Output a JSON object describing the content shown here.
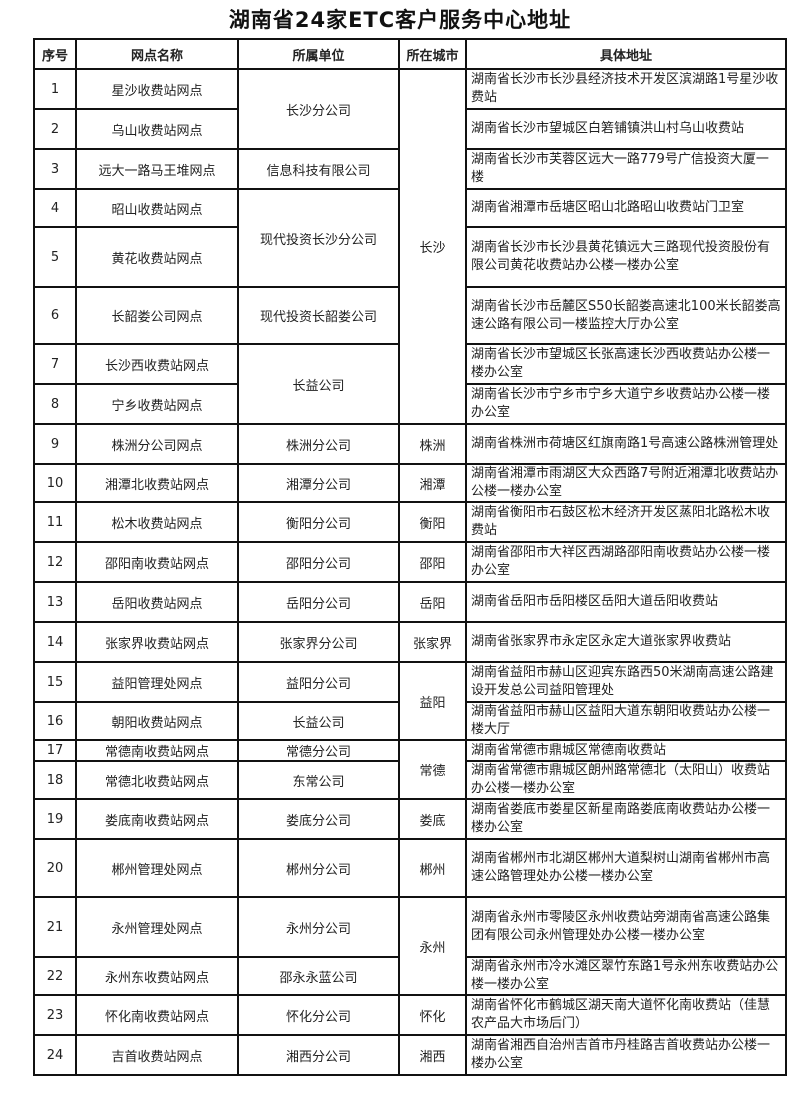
{
  "title": "湖南省24家ETC客户服务中心地址",
  "headers": [
    "序号",
    "网点名称",
    "所属单位",
    "所在城市",
    "具体地址"
  ],
  "rows": [
    {
      "no": "1",
      "name": "星沙收费站网点",
      "unit": "长沙分公司",
      "city": "长沙",
      "address": "湖南省长沙市长沙县经济技术开发区滨湖路1号星沙收费站"
    },
    {
      "no": "2",
      "name": "乌山收费站网点",
      "unit": "长沙分公司",
      "city": "长沙",
      "address": "湖南省长沙市望城区白箬铺镇洪山村乌山收费站"
    },
    {
      "no": "3",
      "name": "远大一路马王堆网点",
      "unit": "信息科技有限公司",
      "city": "长沙",
      "address": "湖南省长沙市芙蓉区远大一路779号广信投资大厦一楼"
    },
    {
      "no": "4",
      "name": "昭山收费站网点",
      "unit": "现代投资长沙分公司",
      "city": "长沙",
      "address": "湖南省湘潭市岳塘区昭山北路昭山收费站门卫室"
    },
    {
      "no": "5",
      "name": "黄花收费站网点",
      "unit": "现代投资长沙分公司",
      "city": "长沙",
      "address": "湖南省长沙市长沙县黄花镇远大三路现代投资股份有限公司黄花收费站办公楼一楼办公室"
    },
    {
      "no": "6",
      "name": "长韶娄公司网点",
      "unit": "现代投资长韶娄公司",
      "city": "长沙",
      "address": "湖南省长沙市岳麓区S50长韶娄高速北100米长韶娄高速公路有限公司一楼监控大厅办公室"
    },
    {
      "no": "7",
      "name": "长沙西收费站网点",
      "unit": "长益公司",
      "city": "长沙",
      "address": "湖南省长沙市望城区长张高速长沙西收费站办公楼一楼办公室"
    },
    {
      "no": "8",
      "name": "宁乡收费站网点",
      "unit": "长益公司",
      "city": "长沙",
      "address": "湖南省长沙市宁乡市宁乡大道宁乡收费站办公楼一楼办公室"
    },
    {
      "no": "9",
      "name": "株洲分公司网点",
      "unit": "株洲分公司",
      "city": "株洲",
      "address": "湖南省株洲市荷塘区红旗南路1号高速公路株洲管理处"
    },
    {
      "no": "10",
      "name": "湘潭北收费站网点",
      "unit": "湘潭分公司",
      "city": "湘潭",
      "address": "湖南省湘潭市雨湖区大众西路7号附近湘潭北收费站办公楼一楼办公室"
    },
    {
      "no": "11",
      "name": "松木收费站网点",
      "unit": "衡阳分公司",
      "city": "衡阳",
      "address": "湖南省衡阳市石鼓区松木经济开发区蒸阳北路松木收费站"
    },
    {
      "no": "12",
      "name": "邵阳南收费站网点",
      "unit": "邵阳分公司",
      "city": "邵阳",
      "address": "湖南省邵阳市大祥区西湖路邵阳南收费站办公楼一楼办公室"
    },
    {
      "no": "13",
      "name": "岳阳收费站网点",
      "unit": "岳阳分公司",
      "city": "岳阳",
      "address": "湖南省岳阳市岳阳楼区岳阳大道岳阳收费站"
    },
    {
      "no": "14",
      "name": "张家界收费站网点",
      "unit": "张家界分公司",
      "city": "张家界",
      "address": "湖南省张家界市永定区永定大道张家界收费站"
    },
    {
      "no": "15",
      "name": "益阳管理处网点",
      "unit": "益阳分公司",
      "city": "益阳",
      "address": "湖南省益阳市赫山区迎宾东路西50米湖南高速公路建设开发总公司益阳管理处"
    },
    {
      "no": "16",
      "name": "朝阳收费站网点",
      "unit": "长益公司",
      "city": "益阳",
      "address": "湖南省益阳市赫山区益阳大道东朝阳收费站办公楼一楼大厅"
    },
    {
      "no": "17",
      "name": "常德南收费站网点",
      "unit": "常德分公司",
      "city": "常德",
      "address": "湖南省常德市鼎城区常德南收费站"
    },
    {
      "no": "18",
      "name": "常德北收费站网点",
      "unit": "东常公司",
      "city": "常德",
      "address": "湖南省常德市鼎城区朗州路常德北（太阳山）收费站办公楼一楼办公室"
    },
    {
      "no": "19",
      "name": "娄底南收费站网点",
      "unit": "娄底分公司",
      "city": "娄底",
      "address": "湖南省娄底市娄星区新星南路娄底南收费站办公楼一楼办公室"
    },
    {
      "no": "20",
      "name": "郴州管理处网点",
      "unit": "郴州分公司",
      "city": "郴州",
      "address": "湖南省郴州市北湖区郴州大道梨树山湖南省郴州市高速公路管理处办公楼一楼办公室"
    },
    {
      "no": "21",
      "name": "永州管理处网点",
      "unit": "永州分公司",
      "city": "永州",
      "address": "湖南省永州市零陵区永州收费站旁湖南省高速公路集团有限公司永州管理处办公楼一楼办公室"
    },
    {
      "no": "22",
      "name": "永州东收费站网点",
      "unit": "邵永永蓝公司",
      "city": "永州",
      "address": "湖南省永州市冷水滩区翠竹东路1号永州东收费站办公楼一楼办公室"
    },
    {
      "no": "23",
      "name": "怀化南收费站网点",
      "unit": "怀化分公司",
      "city": "怀化",
      "address": "湖南省怀化市鹤城区湖天南大道怀化南收费站（佳慧农产品大市场后门）"
    },
    {
      "no": "24",
      "name": "吉首收费站网点",
      "unit": "湘西分公司",
      "city": "湘西",
      "address": "湖南省湘西自治州吉首市丹桂路吉首收费站办公楼一楼办公室"
    }
  ]
}
